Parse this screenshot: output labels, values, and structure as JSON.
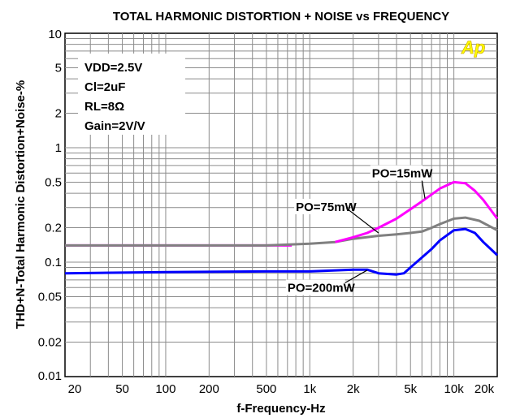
{
  "chart_data": {
    "type": "line",
    "title": "TOTAL HARMONIC DISTORTION + NOISE vs FREQUENCY",
    "xlabel": "f-Frequency-Hz",
    "ylabel": "THD+N-Total Harmonic Distortion+Noise-%",
    "x_scale": "log",
    "y_scale": "log",
    "xlim": [
      20,
      20000
    ],
    "ylim": [
      0.01,
      10
    ],
    "grid": true,
    "x_ticks": [
      {
        "value": 20,
        "label": "20"
      },
      {
        "value": 50,
        "label": "50"
      },
      {
        "value": 100,
        "label": "100"
      },
      {
        "value": 200,
        "label": "200"
      },
      {
        "value": 500,
        "label": "500"
      },
      {
        "value": 1000,
        "label": "1k"
      },
      {
        "value": 2000,
        "label": "2k"
      },
      {
        "value": 5000,
        "label": "5k"
      },
      {
        "value": 10000,
        "label": "10k"
      },
      {
        "value": 20000,
        "label": "20k"
      }
    ],
    "y_ticks": [
      {
        "value": 10,
        "label": "10"
      },
      {
        "value": 5,
        "label": "5"
      },
      {
        "value": 2,
        "label": "2"
      },
      {
        "value": 1,
        "label": "1"
      },
      {
        "value": 0.5,
        "label": "0.5"
      },
      {
        "value": 0.2,
        "label": "0.2"
      },
      {
        "value": 0.1,
        "label": "0.1"
      },
      {
        "value": 0.05,
        "label": "0.05"
      },
      {
        "value": 0.02,
        "label": "0.02"
      },
      {
        "value": 0.01,
        "label": "0.01"
      }
    ],
    "conditions": [
      "VDD=2.5V",
      "Cl=2uF",
      "RL=8Ω",
      "Gain=2V/V"
    ],
    "logo": "Ap",
    "series": [
      {
        "name": "PO=15mW",
        "color": "#ff00ff",
        "x": [
          20,
          100,
          500,
          750
        ],
        "y": [
          0.14,
          0.14,
          0.14,
          0.14
        ]
      },
      {
        "name": "PO=75mW",
        "color": "#808080",
        "x": [
          20,
          500,
          1000,
          1500,
          2000,
          3000,
          4000,
          5000,
          6000,
          7000,
          8000,
          10000,
          12000,
          15000,
          20000
        ],
        "y": [
          0.14,
          0.14,
          0.145,
          0.15,
          0.16,
          0.17,
          0.175,
          0.18,
          0.185,
          0.2,
          0.215,
          0.24,
          0.245,
          0.23,
          0.19
        ]
      },
      {
        "name": "PO=15mW",
        "color": "#ff00ff",
        "x": [
          1500,
          2000,
          2500,
          3000,
          4000,
          5000,
          6000,
          7000,
          8000,
          10000,
          12000,
          14000,
          16000,
          20000
        ],
        "y": [
          0.15,
          0.165,
          0.18,
          0.2,
          0.24,
          0.29,
          0.34,
          0.39,
          0.44,
          0.5,
          0.49,
          0.42,
          0.35,
          0.24
        ]
      },
      {
        "name": "PO=200mW",
        "color": "#0000ff",
        "x": [
          20,
          100,
          500,
          1000,
          2000,
          2500,
          3000,
          4000,
          4500,
          5000,
          6000,
          7000,
          8000,
          10000,
          12000,
          14000,
          16000,
          20000
        ],
        "y": [
          0.08,
          0.082,
          0.083,
          0.083,
          0.086,
          0.086,
          0.08,
          0.078,
          0.08,
          0.09,
          0.11,
          0.13,
          0.155,
          0.19,
          0.195,
          0.18,
          0.15,
          0.115
        ]
      }
    ],
    "annotations": [
      {
        "text": "PO=15mW",
        "x": 2700,
        "y": 0.55,
        "arrow_to": [
          6300,
          0.36
        ]
      },
      {
        "text": "PO=75mW",
        "x": 800,
        "y": 0.28,
        "arrow_to": [
          3000,
          0.18
        ]
      },
      {
        "text": "PO=200mW",
        "x": 700,
        "y": 0.055,
        "arrow_to": [
          2500,
          0.085
        ]
      }
    ]
  }
}
